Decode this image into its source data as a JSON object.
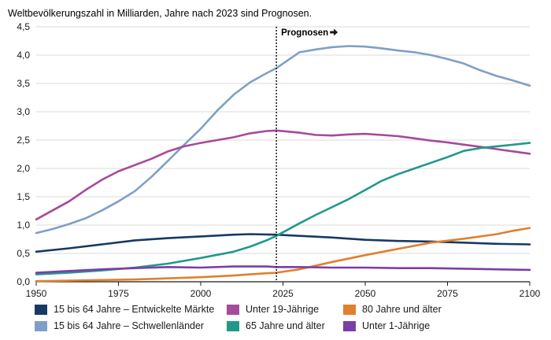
{
  "chart_data": {
    "type": "line",
    "title": "Weltbevölkerungszahl in Milliarden, Jahre nach 2023 sind Prognosen.",
    "xlim": [
      1950,
      2100
    ],
    "ylim": [
      0,
      4.5
    ],
    "x_ticks": [
      "1950",
      "1975",
      "2000",
      "2025",
      "2050",
      "2075",
      "2100"
    ],
    "y_ticks": [
      "0,0",
      "0,5",
      "1,0",
      "1,5",
      "2,0",
      "2,5",
      "3,0",
      "3,5",
      "4,0",
      "4,5"
    ],
    "grid": "horizontal",
    "annotation": {
      "label": "Prognosen",
      "x": 2023
    },
    "legend_position": "bottom",
    "series": [
      {
        "name": "15 bis 64 Jahre – Entwickelte Märkte",
        "color": "#163a63",
        "x": [
          1950,
          1960,
          1970,
          1980,
          1990,
          2000,
          2010,
          2015,
          2023,
          2030,
          2040,
          2050,
          2060,
          2070,
          2080,
          2090,
          2100
        ],
        "y": [
          0.53,
          0.59,
          0.66,
          0.73,
          0.77,
          0.8,
          0.83,
          0.84,
          0.83,
          0.81,
          0.78,
          0.74,
          0.72,
          0.71,
          0.69,
          0.67,
          0.66
        ]
      },
      {
        "name": "15 bis 64 Jahre – Schwellenländer",
        "color": "#7f9fc8",
        "x": [
          1950,
          1955,
          1960,
          1965,
          1970,
          1975,
          1980,
          1985,
          1990,
          1995,
          2000,
          2005,
          2010,
          2015,
          2020,
          2023,
          2030,
          2035,
          2040,
          2045,
          2050,
          2055,
          2060,
          2065,
          2070,
          2075,
          2080,
          2085,
          2090,
          2095,
          2100
        ],
        "y": [
          0.86,
          0.93,
          1.02,
          1.12,
          1.26,
          1.42,
          1.6,
          1.85,
          2.13,
          2.42,
          2.7,
          3.02,
          3.3,
          3.52,
          3.68,
          3.77,
          4.05,
          4.1,
          4.14,
          4.16,
          4.15,
          4.12,
          4.08,
          4.05,
          4.0,
          3.93,
          3.85,
          3.73,
          3.63,
          3.55,
          3.46
        ]
      },
      {
        "name": "Unter 19-Jährige",
        "color": "#a64a9a",
        "x": [
          1950,
          1955,
          1960,
          1965,
          1970,
          1975,
          1980,
          1985,
          1990,
          1995,
          2000,
          2005,
          2010,
          2015,
          2020,
          2023,
          2030,
          2035,
          2040,
          2045,
          2050,
          2055,
          2060,
          2065,
          2070,
          2075,
          2080,
          2085,
          2090,
          2095,
          2100
        ],
        "y": [
          1.1,
          1.26,
          1.42,
          1.62,
          1.8,
          1.95,
          2.06,
          2.17,
          2.3,
          2.39,
          2.45,
          2.5,
          2.55,
          2.62,
          2.66,
          2.67,
          2.63,
          2.59,
          2.58,
          2.6,
          2.61,
          2.59,
          2.57,
          2.53,
          2.49,
          2.46,
          2.42,
          2.38,
          2.34,
          2.3,
          2.26
        ]
      },
      {
        "name": "65 Jahre und älter",
        "color": "#21998a",
        "x": [
          1950,
          1960,
          1970,
          1980,
          1990,
          2000,
          2010,
          2015,
          2020,
          2023,
          2030,
          2035,
          2040,
          2045,
          2050,
          2055,
          2060,
          2065,
          2070,
          2075,
          2080,
          2085,
          2090,
          2095,
          2100
        ],
        "y": [
          0.13,
          0.16,
          0.2,
          0.25,
          0.32,
          0.42,
          0.53,
          0.62,
          0.73,
          0.81,
          1.03,
          1.18,
          1.32,
          1.46,
          1.62,
          1.78,
          1.9,
          2.0,
          2.1,
          2.2,
          2.31,
          2.36,
          2.39,
          2.42,
          2.45
        ]
      },
      {
        "name": "80 Jahre und älter",
        "color": "#e0802d",
        "x": [
          1950,
          1960,
          1970,
          1980,
          1990,
          2000,
          2010,
          2015,
          2020,
          2023,
          2030,
          2040,
          2050,
          2060,
          2070,
          2080,
          2090,
          2095,
          2100
        ],
        "y": [
          0.01,
          0.02,
          0.03,
          0.04,
          0.06,
          0.08,
          0.11,
          0.13,
          0.15,
          0.16,
          0.22,
          0.35,
          0.47,
          0.58,
          0.69,
          0.76,
          0.84,
          0.9,
          0.95
        ]
      },
      {
        "name": "Unter 1-Jährige",
        "color": "#7a3fa6",
        "x": [
          1950,
          1960,
          1970,
          1980,
          1990,
          2000,
          2010,
          2020,
          2023,
          2030,
          2040,
          2050,
          2060,
          2070,
          2080,
          2090,
          2100
        ],
        "y": [
          0.16,
          0.19,
          0.22,
          0.24,
          0.26,
          0.25,
          0.27,
          0.27,
          0.26,
          0.26,
          0.25,
          0.25,
          0.24,
          0.24,
          0.23,
          0.22,
          0.21
        ]
      }
    ]
  },
  "legend": {
    "items": [
      {
        "label": "15 bis 64 Jahre – Entwickelte Märkte",
        "color": "#163a63"
      },
      {
        "label": "15 bis 64 Jahre – Schwellenländer",
        "color": "#7f9fc8"
      },
      {
        "label": "Unter 19-Jährige",
        "color": "#a64a9a"
      },
      {
        "label": "65 Jahre und älter",
        "color": "#21998a"
      },
      {
        "label": "80 Jahre und älter",
        "color": "#e0802d"
      },
      {
        "label": "Unter 1-Jährige",
        "color": "#7a3fa6"
      }
    ]
  }
}
